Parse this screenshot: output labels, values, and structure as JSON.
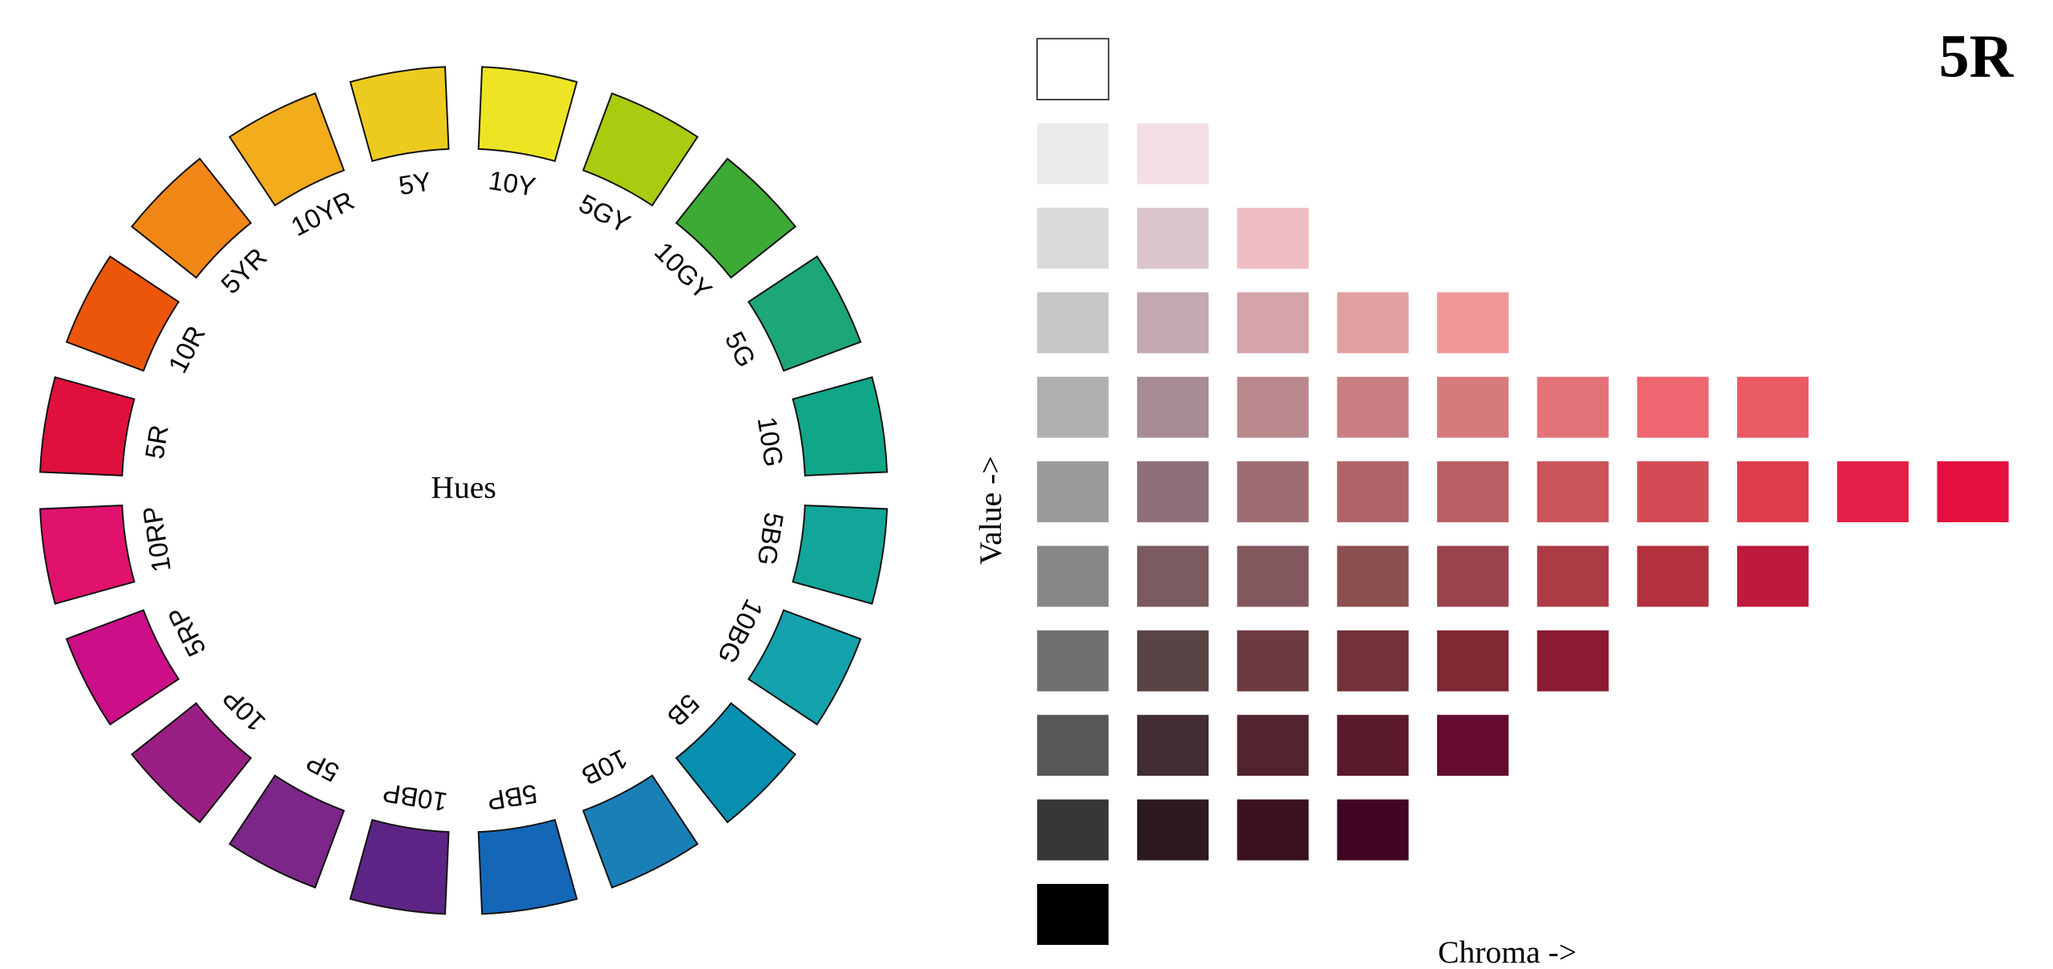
{
  "title": "5R",
  "wheel": {
    "center_label": "Hues",
    "hues": [
      {
        "label": "10Y",
        "color": "#ede424"
      },
      {
        "label": "5GY",
        "color": "#a9cb10"
      },
      {
        "label": "10GY",
        "color": "#3daa35"
      },
      {
        "label": "5G",
        "color": "#1ca67a"
      },
      {
        "label": "10G",
        "color": "#0fa788"
      },
      {
        "label": "5BG",
        "color": "#11a699"
      },
      {
        "label": "10BG",
        "color": "#14a2ad"
      },
      {
        "label": "5B",
        "color": "#078fb0"
      },
      {
        "label": "10B",
        "color": "#1b7fb7"
      },
      {
        "label": "5BP",
        "color": "#1467b7"
      },
      {
        "label": "10BP",
        "color": "#5c2585"
      },
      {
        "label": "5P",
        "color": "#7b2688"
      },
      {
        "label": "10P",
        "color": "#9a1f84"
      },
      {
        "label": "5RP",
        "color": "#cc0e88"
      },
      {
        "label": "10RP",
        "color": "#e1126c"
      },
      {
        "label": "5R",
        "color": "#e0103e"
      },
      {
        "label": "10R",
        "color": "#ec560b"
      },
      {
        "label": "5YR",
        "color": "#f08717"
      },
      {
        "label": "10YR",
        "color": "#f3ac1c"
      },
      {
        "label": "5Y",
        "color": "#edcb1e"
      }
    ]
  },
  "grid": {
    "y_label": "Value ->",
    "x_label": "Chroma ->",
    "rows": [
      [
        "#ffffff"
      ],
      [
        "#ebebeb",
        "#f5dfe6"
      ],
      [
        "#dadada",
        "#dcc4cc",
        "#eebec4"
      ],
      [
        "#c6c6c6",
        "#c4a8b1",
        "#d5a4aa",
        "#e3a0a2",
        "#f09799"
      ],
      [
        "#b0b0b0",
        "#a88c93",
        "#b9898d",
        "#c97f82",
        "#d67a7e",
        "#e37378",
        "#ee6670",
        "#ea5b65"
      ],
      [
        "#9b9b9b",
        "#8e707a",
        "#9f6c73",
        "#ae6469",
        "#bc5e65",
        "#c95559",
        "#d44b55",
        "#dd3d4d",
        "#e32048",
        "#e4103f"
      ],
      [
        "#878787",
        "#7b5b5f",
        "#83575e",
        "#8c5050",
        "#9b444d",
        "#ac3b45",
        "#b3303f",
        "#bd1a3c"
      ],
      [
        "#707070",
        "#5a4345",
        "#6d3a41",
        "#733138",
        "#802834",
        "#8b1a33"
      ],
      [
        "#575757",
        "#412d33",
        "#51242f",
        "#5b1a2c",
        "#650b30"
      ],
      [
        "#373737",
        "#2d1a21",
        "#3b1222",
        "#420625"
      ],
      [
        "#000000"
      ]
    ]
  }
}
